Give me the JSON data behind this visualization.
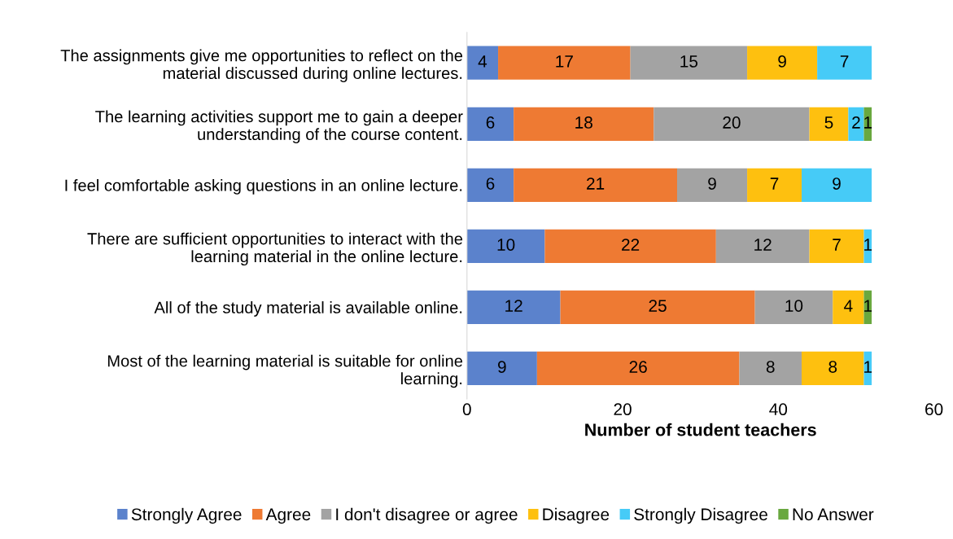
{
  "chart_data": {
    "type": "bar",
    "orientation": "horizontal",
    "stacked": true,
    "xlabel": "Number of student teachers",
    "categories": [
      "The assignments give me opportunities to reflect on the\nmaterial discussed during online lectures.",
      "The learning activities support me to gain a deeper\nunderstanding of the course content.",
      "I feel comfortable asking questions in an online lecture.",
      "There are sufficient opportunities to interact with the\nlearning material in the online lecture.",
      "All of the study material is available online.",
      "Most of the learning material is suitable for online\nlearning."
    ],
    "series": [
      {
        "name": "Strongly Agree",
        "color": "#5b82cc",
        "values": [
          4,
          6,
          6,
          10,
          12,
          9
        ]
      },
      {
        "name": "Agree",
        "color": "#ee7a33",
        "values": [
          17,
          18,
          21,
          22,
          25,
          26
        ]
      },
      {
        "name": "I don't disagree or agree",
        "color": "#a3a3a3",
        "values": [
          15,
          20,
          9,
          12,
          10,
          8
        ]
      },
      {
        "name": "Disagree",
        "color": "#fec00f",
        "values": [
          9,
          5,
          7,
          7,
          4,
          8
        ]
      },
      {
        "name": "Strongly Disagree",
        "color": "#46cbf7",
        "values": [
          7,
          2,
          9,
          1,
          null,
          1
        ]
      },
      {
        "name": "No Answer",
        "color": "#69a83f",
        "values": [
          null,
          1,
          null,
          null,
          1,
          null
        ]
      }
    ],
    "xlim": [
      0,
      60
    ],
    "xticks": [
      0,
      20,
      40,
      60
    ],
    "data_labels": true,
    "grid": false,
    "legend": "bottom"
  }
}
